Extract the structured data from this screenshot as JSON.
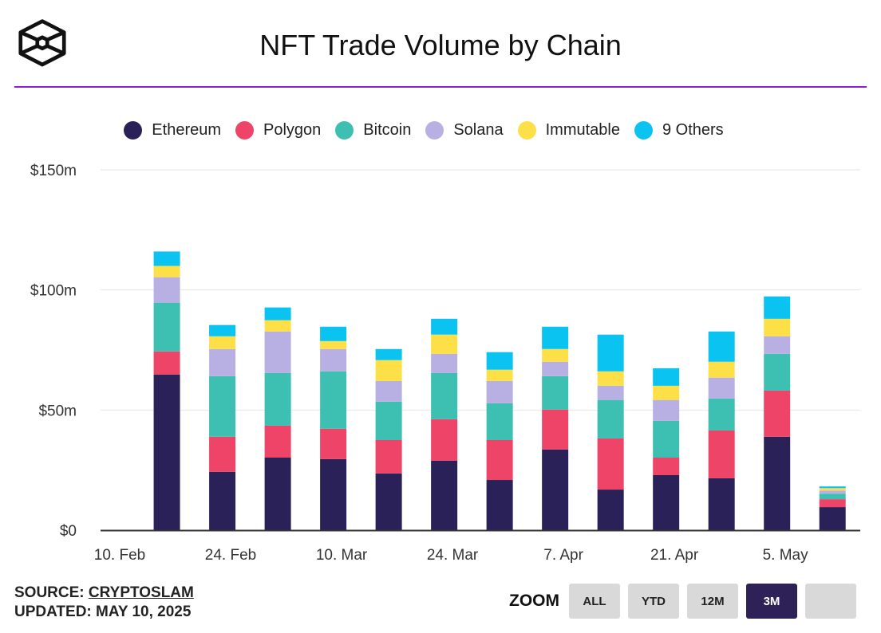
{
  "title": "NFT Trade Volume by Chain",
  "footer": {
    "source_label": "SOURCE:",
    "source": "CRYPTOSLAM",
    "updated": "UPDATED: MAY 10, 2025"
  },
  "zoom": {
    "label": "ZOOM",
    "buttons": [
      "ALL",
      "YTD",
      "12M",
      "3M",
      ""
    ],
    "active": "3M"
  },
  "chart_data": {
    "type": "bar",
    "stacked": true,
    "title": "NFT Trade Volume by Chain",
    "ylim": [
      0,
      150
    ],
    "yticks": [
      0,
      50,
      100,
      150
    ],
    "ytick_labels": [
      "$0",
      "$50m",
      "$100m",
      "$150m"
    ],
    "xlim": [
      "2025-02-07",
      "2025-05-14"
    ],
    "xtick_dates": [
      "2025-02-10",
      "2025-02-24",
      "2025-03-10",
      "2025-03-24",
      "2025-04-07",
      "2025-04-21",
      "2025-05-05"
    ],
    "xtick_labels": [
      "10. Feb",
      "24. Feb",
      "10. Mar",
      "24. Mar",
      "7. Apr",
      "21. Apr",
      "5. May"
    ],
    "x": [
      "2025-02-16",
      "2025-02-23",
      "2025-03-02",
      "2025-03-09",
      "2025-03-16",
      "2025-03-23",
      "2025-03-30",
      "2025-04-06",
      "2025-04-13",
      "2025-04-20",
      "2025-04-27",
      "2025-05-04",
      "2025-05-11"
    ],
    "legend": "top",
    "grid": true,
    "series": [
      {
        "name": "Ethereum",
        "color": "#2b2159",
        "values": [
          64.8,
          24.3,
          30.2,
          29.6,
          23.6,
          28.9,
          20.9,
          33.6,
          16.9,
          22.9,
          21.6,
          38.9,
          9.6
        ]
      },
      {
        "name": "Polygon",
        "color": "#ee4468",
        "values": [
          9.6,
          14.6,
          13.3,
          12.6,
          13.9,
          17.3,
          16.6,
          16.6,
          21.3,
          7.3,
          19.9,
          19.2,
          3.3
        ]
      },
      {
        "name": "Bitcoin",
        "color": "#3dbfb2",
        "values": [
          20.3,
          25.2,
          21.9,
          23.9,
          16.0,
          19.2,
          15.3,
          13.9,
          16.0,
          15.3,
          13.3,
          15.3,
          2.3
        ]
      },
      {
        "name": "Solana",
        "color": "#b8b0e3",
        "values": [
          10.6,
          11.3,
          17.3,
          9.3,
          8.6,
          8.0,
          9.3,
          6.0,
          5.9,
          8.7,
          8.7,
          7.3,
          1.3
        ]
      },
      {
        "name": "Immutable",
        "color": "#fde047",
        "values": [
          4.7,
          5.3,
          4.7,
          3.3,
          8.7,
          8.0,
          4.7,
          5.3,
          6.0,
          5.9,
          6.6,
          7.3,
          1.0
        ]
      },
      {
        "name": "9 Others",
        "color": "#0bc3f0",
        "values": [
          6.0,
          4.7,
          5.3,
          6.0,
          4.6,
          6.6,
          7.3,
          9.3,
          15.3,
          7.3,
          12.6,
          9.3,
          0.7
        ]
      }
    ]
  }
}
